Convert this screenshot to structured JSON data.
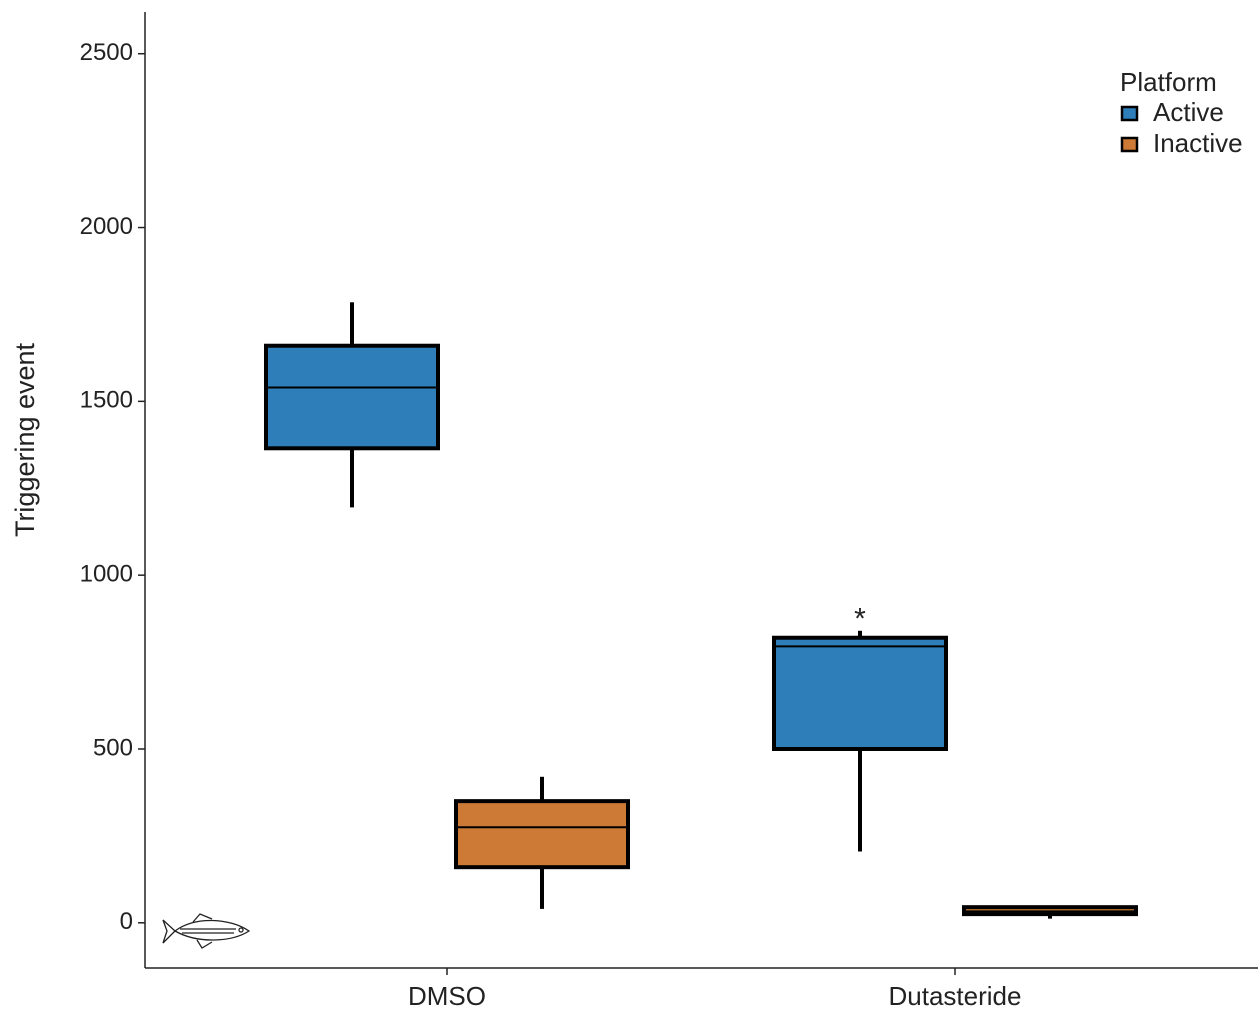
{
  "chart_data": {
    "type": "box",
    "y_label": "Triggering event",
    "categories": [
      "DMSO",
      "Dutasteride"
    ],
    "legend_title": "Platform",
    "series": [
      {
        "name": "Active",
        "color": "#2e7fb9",
        "min": [
          1195,
          205
        ],
        "q1": [
          1365,
          500
        ],
        "median": [
          1540,
          795
        ],
        "q3": [
          1660,
          820
        ],
        "max": [
          1785,
          840
        ]
      },
      {
        "name": "Inactive",
        "color": "#cc7a36",
        "min": [
          40,
          12
        ],
        "q1": [
          160,
          25
        ],
        "median": [
          275,
          33
        ],
        "q3": [
          350,
          45
        ],
        "max": [
          420,
          45
        ]
      }
    ],
    "annotations": [
      "*"
    ],
    "ylim": [
      -130,
      2620
    ],
    "yticks": [
      0,
      500,
      1000,
      1500,
      2000,
      2500
    ],
    "grid": false,
    "legend_position": "top-right"
  }
}
